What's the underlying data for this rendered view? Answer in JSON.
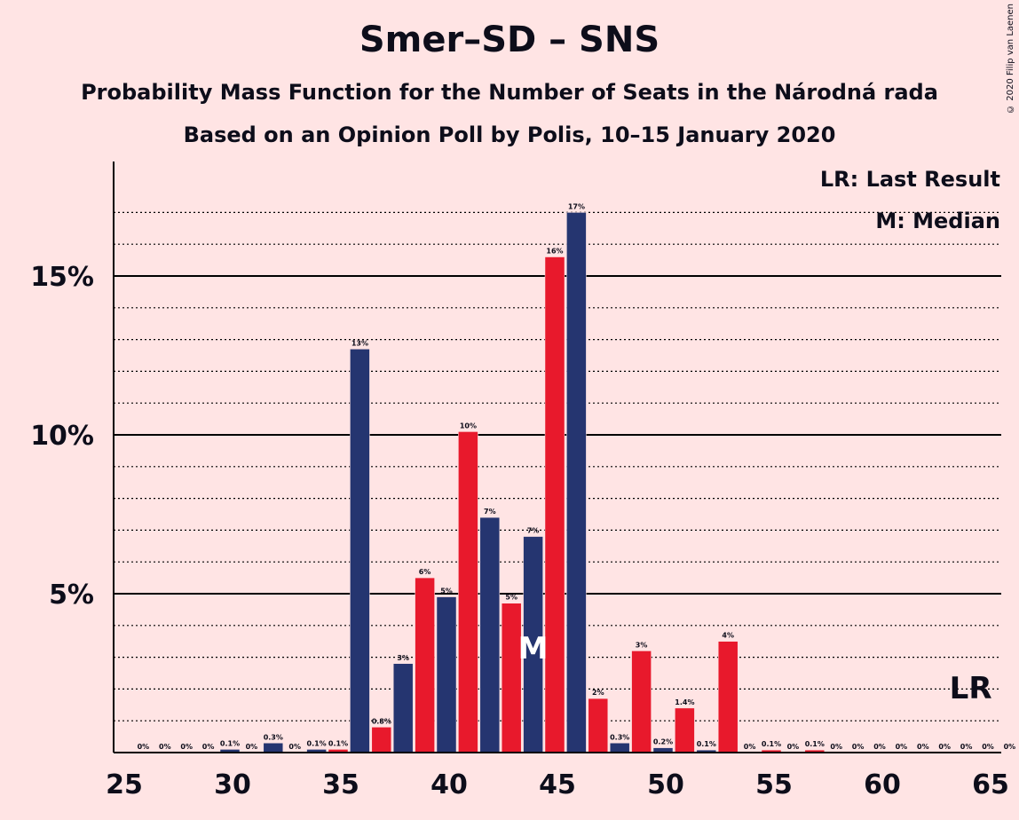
{
  "chart_data": {
    "type": "bar",
    "title": "Smer–SD – SNS",
    "subtitle1": "Probability Mass Function for the Number of Seats in the Národná rada",
    "subtitle2": "Based on an Opinion Poll by Polis, 10–15 January 2020",
    "copyright": "© 2020 Filip van Laenen",
    "legend": [
      "LR: Last Result",
      "M: Median"
    ],
    "x_ticks": [
      25,
      30,
      35,
      40,
      45,
      50,
      55,
      60,
      65
    ],
    "y_ticks": [
      {
        "value": 5,
        "label": "5%"
      },
      {
        "value": 10,
        "label": "10%"
      },
      {
        "value": 15,
        "label": "15%"
      }
    ],
    "ylim": [
      0,
      18.5
    ],
    "xlim": [
      24.5,
      65.5
    ],
    "grid": "solid at labelled ticks, dotted every 1%",
    "colors": {
      "odd": "#253570",
      "even": "#e8192c",
      "background": "#ffe4e4",
      "axis": "#000000"
    },
    "median": {
      "seat": 43,
      "label": "M"
    },
    "last_result": {
      "seat": 64,
      "label": "LR"
    },
    "bars": [
      {
        "x": 26,
        "value": 0,
        "label": "0%"
      },
      {
        "x": 27,
        "value": 0,
        "label": "0%"
      },
      {
        "x": 28,
        "value": 0,
        "label": "0%"
      },
      {
        "x": 29,
        "value": 0,
        "label": "0%"
      },
      {
        "x": 30,
        "value": 0.1,
        "label": "0.1%"
      },
      {
        "x": 31,
        "value": 0,
        "label": "0%"
      },
      {
        "x": 32,
        "value": 0.3,
        "label": "0.3%"
      },
      {
        "x": 33,
        "value": 0,
        "label": "0%"
      },
      {
        "x": 34,
        "value": 0.1,
        "label": "0.1%"
      },
      {
        "x": 35,
        "value": 0.1,
        "label": "0.1%"
      },
      {
        "x": 36,
        "value": 12.7,
        "label": "13%"
      },
      {
        "x": 37,
        "value": 0.8,
        "label": "0.8%"
      },
      {
        "x": 38,
        "value": 2.8,
        "label": "3%"
      },
      {
        "x": 39,
        "value": 5.5,
        "label": "6%"
      },
      {
        "x": 40,
        "value": 4.9,
        "label": "5%"
      },
      {
        "x": 41,
        "value": 10.1,
        "label": "10%"
      },
      {
        "x": 42,
        "value": 7.4,
        "label": "7%"
      },
      {
        "x": 43,
        "value": 4.7,
        "label": "5%"
      },
      {
        "x": 44,
        "value": 6.8,
        "label": "7%"
      },
      {
        "x": 45,
        "value": 15.6,
        "label": "16%"
      },
      {
        "x": 46,
        "value": 17.0,
        "label": "17%"
      },
      {
        "x": 47,
        "value": 1.7,
        "label": "2%"
      },
      {
        "x": 48,
        "value": 0.3,
        "label": "0.3%"
      },
      {
        "x": 49,
        "value": 3.2,
        "label": "3%"
      },
      {
        "x": 50,
        "value": 0.15,
        "label": "0.2%"
      },
      {
        "x": 51,
        "value": 1.4,
        "label": "1.4%"
      },
      {
        "x": 52,
        "value": 0.08,
        "label": "0.1%"
      },
      {
        "x": 53,
        "value": 3.5,
        "label": "4%"
      },
      {
        "x": 54,
        "value": 0,
        "label": "0%"
      },
      {
        "x": 55,
        "value": 0.08,
        "label": "0.1%"
      },
      {
        "x": 56,
        "value": 0,
        "label": "0%"
      },
      {
        "x": 57,
        "value": 0.08,
        "label": "0.1%"
      },
      {
        "x": 58,
        "value": 0,
        "label": "0%"
      },
      {
        "x": 59,
        "value": 0,
        "label": "0%"
      },
      {
        "x": 60,
        "value": 0,
        "label": "0%"
      },
      {
        "x": 61,
        "value": 0,
        "label": "0%"
      },
      {
        "x": 62,
        "value": 0,
        "label": "0%"
      },
      {
        "x": 63,
        "value": 0,
        "label": "0%"
      },
      {
        "x": 64,
        "value": 0,
        "label": "0%"
      },
      {
        "x": 65,
        "value": 0,
        "label": "0%"
      },
      {
        "x": 66,
        "value": 0,
        "label": "0%"
      }
    ]
  }
}
